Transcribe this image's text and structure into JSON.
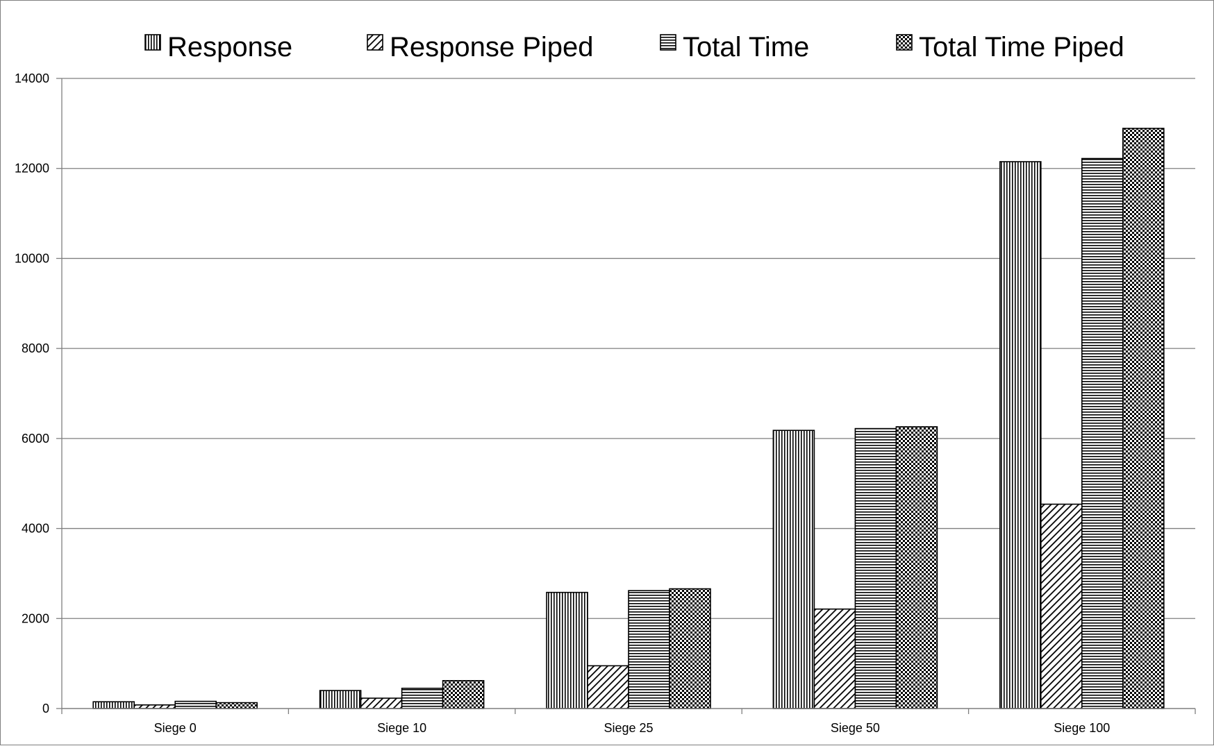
{
  "chart_data": {
    "type": "bar",
    "categories": [
      "Siege 0",
      "Siege 10",
      "Siege 25",
      "Siege 50",
      "Siege 100"
    ],
    "series": [
      {
        "name": "Response",
        "pattern": "vertical-lines",
        "values": [
          150,
          400,
          2580,
          6180,
          12150
        ]
      },
      {
        "name": "Response Piped",
        "pattern": "diagonal-lines",
        "values": [
          80,
          230,
          950,
          2210,
          4540
        ]
      },
      {
        "name": "Total Time",
        "pattern": "horizontal-lines",
        "values": [
          160,
          450,
          2620,
          6220,
          12220
        ]
      },
      {
        "name": "Total Time Piped",
        "pattern": "checkerboard",
        "values": [
          130,
          620,
          2660,
          6260,
          12890
        ]
      }
    ],
    "yticks": [
      "0",
      "2000",
      "4000",
      "6000",
      "8000",
      "10000",
      "12000",
      "14000"
    ],
    "ylim": [
      0,
      14000
    ],
    "title": "",
    "xlabel": "",
    "ylabel": "",
    "grid": true,
    "legend_position": "top",
    "colors": {
      "bar_fill": "#ffffff",
      "bar_stroke": "#000000",
      "gridline": "#7f7f7f",
      "axis": "#7f7f7f"
    }
  }
}
